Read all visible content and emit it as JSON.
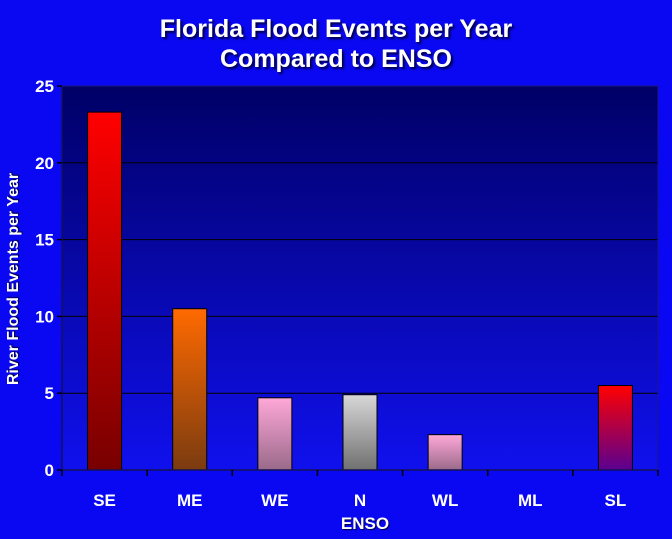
{
  "chart_data": {
    "type": "bar",
    "title_line1": "Florida Flood Events per Year",
    "title_line2": "Compared to ENSO",
    "xlabel": "ENSO",
    "ylabel": "River Flood Events per Year",
    "categories": [
      "SE",
      "ME",
      "WE",
      "N",
      "WL",
      "ML",
      "SL"
    ],
    "values": [
      23.3,
      10.5,
      4.7,
      4.9,
      2.3,
      0,
      5.5
    ],
    "ylim": [
      0,
      25
    ],
    "yticks": [
      0,
      5,
      10,
      15,
      20,
      25
    ],
    "grid": true,
    "legend": "none",
    "colors": {
      "background": "#0a08f2",
      "plot_top": "#000066",
      "plot_bottom": "#1010ee",
      "gridline": "#000000"
    },
    "bar_gradients": [
      [
        "#ff0000",
        "#780000"
      ],
      [
        "#ff6a00",
        "#7a3b10"
      ],
      [
        "#ffa8d8",
        "#9a6a8a"
      ],
      [
        "#d8d8d8",
        "#707070"
      ],
      [
        "#ffa8d8",
        "#9a6a8a"
      ],
      [
        "#ff0000",
        "#780000"
      ],
      [
        "#ff0000",
        "#5a0090"
      ]
    ]
  }
}
